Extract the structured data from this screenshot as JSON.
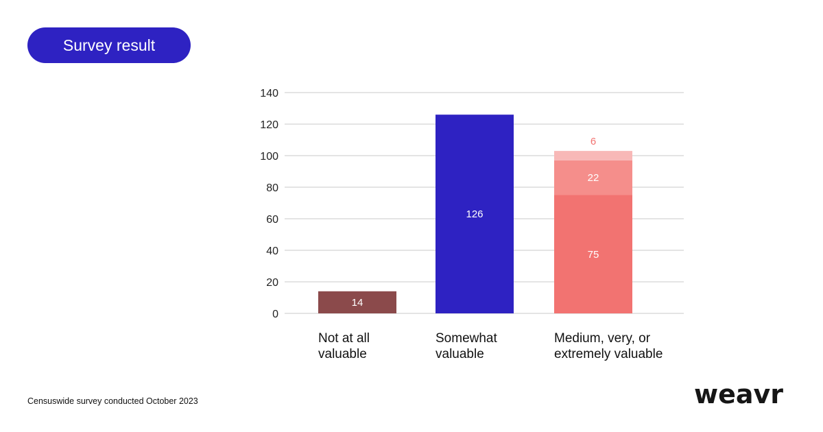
{
  "header": {
    "badge": "Survey result"
  },
  "footer": {
    "source": "Censuswide survey conducted October 2023",
    "logo": "weavr"
  },
  "chart_data": {
    "type": "bar",
    "stacked": true,
    "categories": [
      [
        "Not at all",
        "valuable"
      ],
      [
        "Somewhat",
        "valuable"
      ],
      [
        "Medium, very, or",
        "extremely valuable"
      ]
    ],
    "segments": [
      [
        {
          "value": 14,
          "color": "#8b4a4b",
          "label_color": "#ffffff"
        }
      ],
      [
        {
          "value": 126,
          "color": "#2e22c2",
          "label_color": "#ffffff"
        }
      ],
      [
        {
          "value": 75,
          "color": "#f27371",
          "label_color": "#ffffff"
        },
        {
          "value": 22,
          "color": "#f58e8b",
          "label_color": "#ffffff"
        },
        {
          "value": 6,
          "color": "#f8b8b7",
          "label_color": "#f27371",
          "label_position": "above"
        }
      ]
    ],
    "ylim": [
      0,
      140
    ],
    "yticks": [
      0,
      20,
      40,
      60,
      80,
      100,
      120,
      140
    ],
    "grid": true,
    "title": "",
    "xlabel": "",
    "ylabel": ""
  }
}
